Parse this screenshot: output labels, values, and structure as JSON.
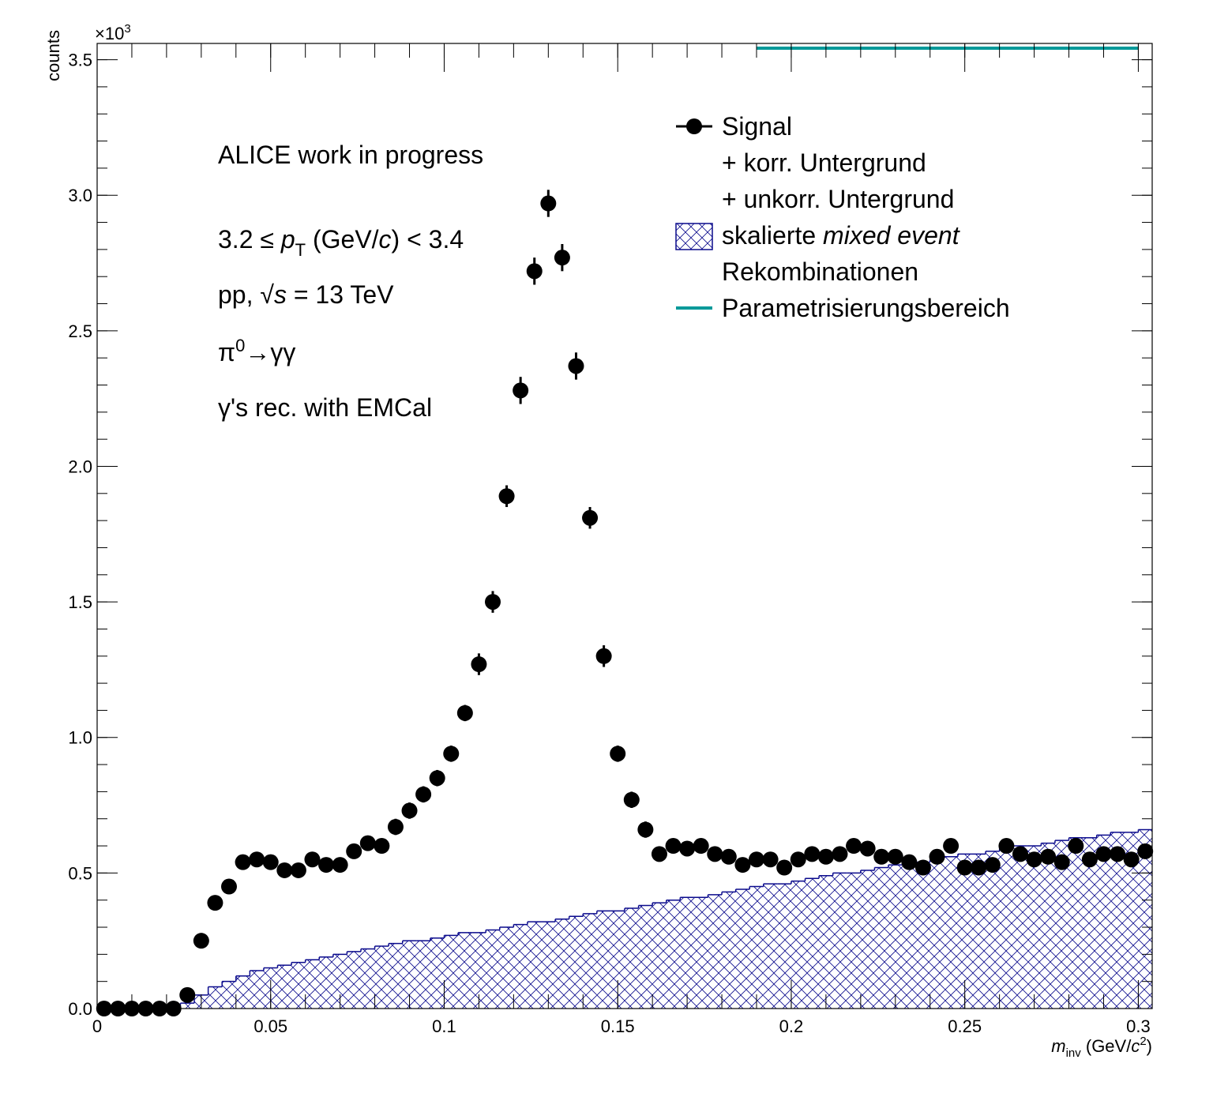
{
  "chart_data": {
    "type": "histogram",
    "y_label": "counts",
    "y_multiplier": {
      "base": "×10",
      "exponent": "3"
    },
    "x_label_parts": [
      "m",
      "inv",
      " (GeV/",
      "c",
      "2",
      ")"
    ],
    "annotations": [
      "ALICE work in progress",
      [
        "3.2 ≤ ",
        "p",
        "T",
        " (GeV/",
        "c",
        ") < 3.4"
      ],
      [
        "pp, ",
        "√",
        "s",
        " = 13 TeV"
      ],
      [
        "π",
        "0",
        "→γγ"
      ],
      "γ's rec. with EMCal"
    ],
    "xlim": [
      0,
      0.304
    ],
    "ylim": [
      0,
      3.56
    ],
    "xticks": [
      0,
      0.05,
      0.1,
      0.15,
      0.2,
      0.25,
      0.3
    ],
    "yticks": [
      {
        "value": 0,
        "label": "0.0"
      },
      0.5,
      {
        "value": 1,
        "label": "1.0"
      },
      1.5,
      {
        "value": 2,
        "label": "2.0"
      },
      2.5,
      {
        "value": 3,
        "label": "3.0"
      },
      3.5
    ],
    "minor_divisions": 5,
    "bins": [
      0,
      0.004,
      0.008,
      0.012,
      0.016,
      0.02,
      0.024,
      0.028,
      0.032,
      0.036,
      0.04,
      0.044,
      0.048,
      0.052,
      0.056,
      0.06,
      0.064,
      0.068,
      0.072,
      0.076,
      0.08,
      0.084,
      0.088,
      0.092,
      0.096,
      0.1,
      0.104,
      0.108,
      0.112,
      0.116,
      0.12,
      0.124,
      0.128,
      0.132,
      0.136,
      0.14,
      0.144,
      0.148,
      0.152,
      0.156,
      0.16,
      0.164,
      0.168,
      0.172,
      0.176,
      0.18,
      0.184,
      0.188,
      0.192,
      0.196,
      0.2,
      0.204,
      0.208,
      0.212,
      0.216,
      0.22,
      0.224,
      0.228,
      0.232,
      0.236,
      0.24,
      0.244,
      0.248,
      0.252,
      0.256,
      0.26,
      0.264,
      0.268,
      0.272,
      0.276,
      0.28,
      0.284,
      0.288,
      0.292,
      0.296,
      0.3,
      0.304
    ],
    "series": [
      {
        "name": [
          "skalierte ",
          "mixed event",
          "Rekombinationen"
        ],
        "style": "hatched-step",
        "color": "#0a0a8c",
        "values": [
          0,
          0,
          0,
          0,
          0,
          0,
          0.02,
          0.05,
          0.08,
          0.1,
          0.12,
          0.14,
          0.15,
          0.16,
          0.17,
          0.18,
          0.19,
          0.2,
          0.21,
          0.22,
          0.23,
          0.24,
          0.25,
          0.25,
          0.26,
          0.27,
          0.28,
          0.28,
          0.29,
          0.3,
          0.31,
          0.32,
          0.32,
          0.33,
          0.34,
          0.35,
          0.36,
          0.36,
          0.37,
          0.38,
          0.39,
          0.4,
          0.41,
          0.41,
          0.42,
          0.43,
          0.44,
          0.45,
          0.46,
          0.46,
          0.47,
          0.48,
          0.49,
          0.5,
          0.5,
          0.51,
          0.52,
          0.53,
          0.54,
          0.54,
          0.55,
          0.56,
          0.57,
          0.57,
          0.58,
          0.59,
          0.6,
          0.6,
          0.61,
          0.62,
          0.63,
          0.63,
          0.64,
          0.65,
          0.65,
          0.66
        ]
      },
      {
        "name": [
          "Signal",
          "+ korr. Untergrund",
          "+ unkorr. Untergrund"
        ],
        "style": "markers",
        "color": "#000000",
        "values": [
          0,
          0,
          0,
          0,
          0,
          0,
          0.05,
          0.25,
          0.39,
          0.45,
          0.54,
          0.55,
          0.54,
          0.51,
          0.51,
          0.55,
          0.53,
          0.53,
          0.58,
          0.61,
          0.6,
          0.67,
          0.73,
          0.79,
          0.85,
          0.94,
          1.09,
          1.27,
          1.5,
          1.89,
          2.28,
          2.72,
          2.97,
          2.77,
          2.37,
          1.81,
          1.3,
          0.94,
          0.77,
          0.66,
          0.57,
          0.6,
          0.59,
          0.6,
          0.57,
          0.56,
          0.53,
          0.55,
          0.55,
          0.52,
          0.55,
          0.57,
          0.56,
          0.57,
          0.6,
          0.59,
          0.56,
          0.56,
          0.54,
          0.52,
          0.56,
          0.6,
          0.52,
          0.52,
          0.53,
          0.6,
          0.57,
          0.55,
          0.56,
          0.54,
          0.6,
          0.55,
          0.57,
          0.57,
          0.55,
          0.58
        ],
        "errors": [
          0,
          0,
          0,
          0,
          0,
          0,
          0.01,
          0.02,
          0.02,
          0.02,
          0.02,
          0.02,
          0.02,
          0.02,
          0.02,
          0.02,
          0.02,
          0.02,
          0.02,
          0.02,
          0.02,
          0.03,
          0.03,
          0.03,
          0.03,
          0.03,
          0.03,
          0.04,
          0.04,
          0.04,
          0.05,
          0.05,
          0.05,
          0.05,
          0.05,
          0.04,
          0.04,
          0.03,
          0.03,
          0.03,
          0.02,
          0.02,
          0.02,
          0.02,
          0.02,
          0.02,
          0.02,
          0.02,
          0.02,
          0.02,
          0.02,
          0.02,
          0.02,
          0.02,
          0.02,
          0.02,
          0.02,
          0.02,
          0.02,
          0.02,
          0.02,
          0.02,
          0.02,
          0.02,
          0.02,
          0.02,
          0.02,
          0.02,
          0.02,
          0.02,
          0.02,
          0.02,
          0.02,
          0.02,
          0.02,
          0.02
        ]
      }
    ],
    "fit_range": {
      "name": "Parametrisierungsbereich",
      "color": "#009999",
      "range": [
        0.19,
        0.3
      ]
    }
  }
}
